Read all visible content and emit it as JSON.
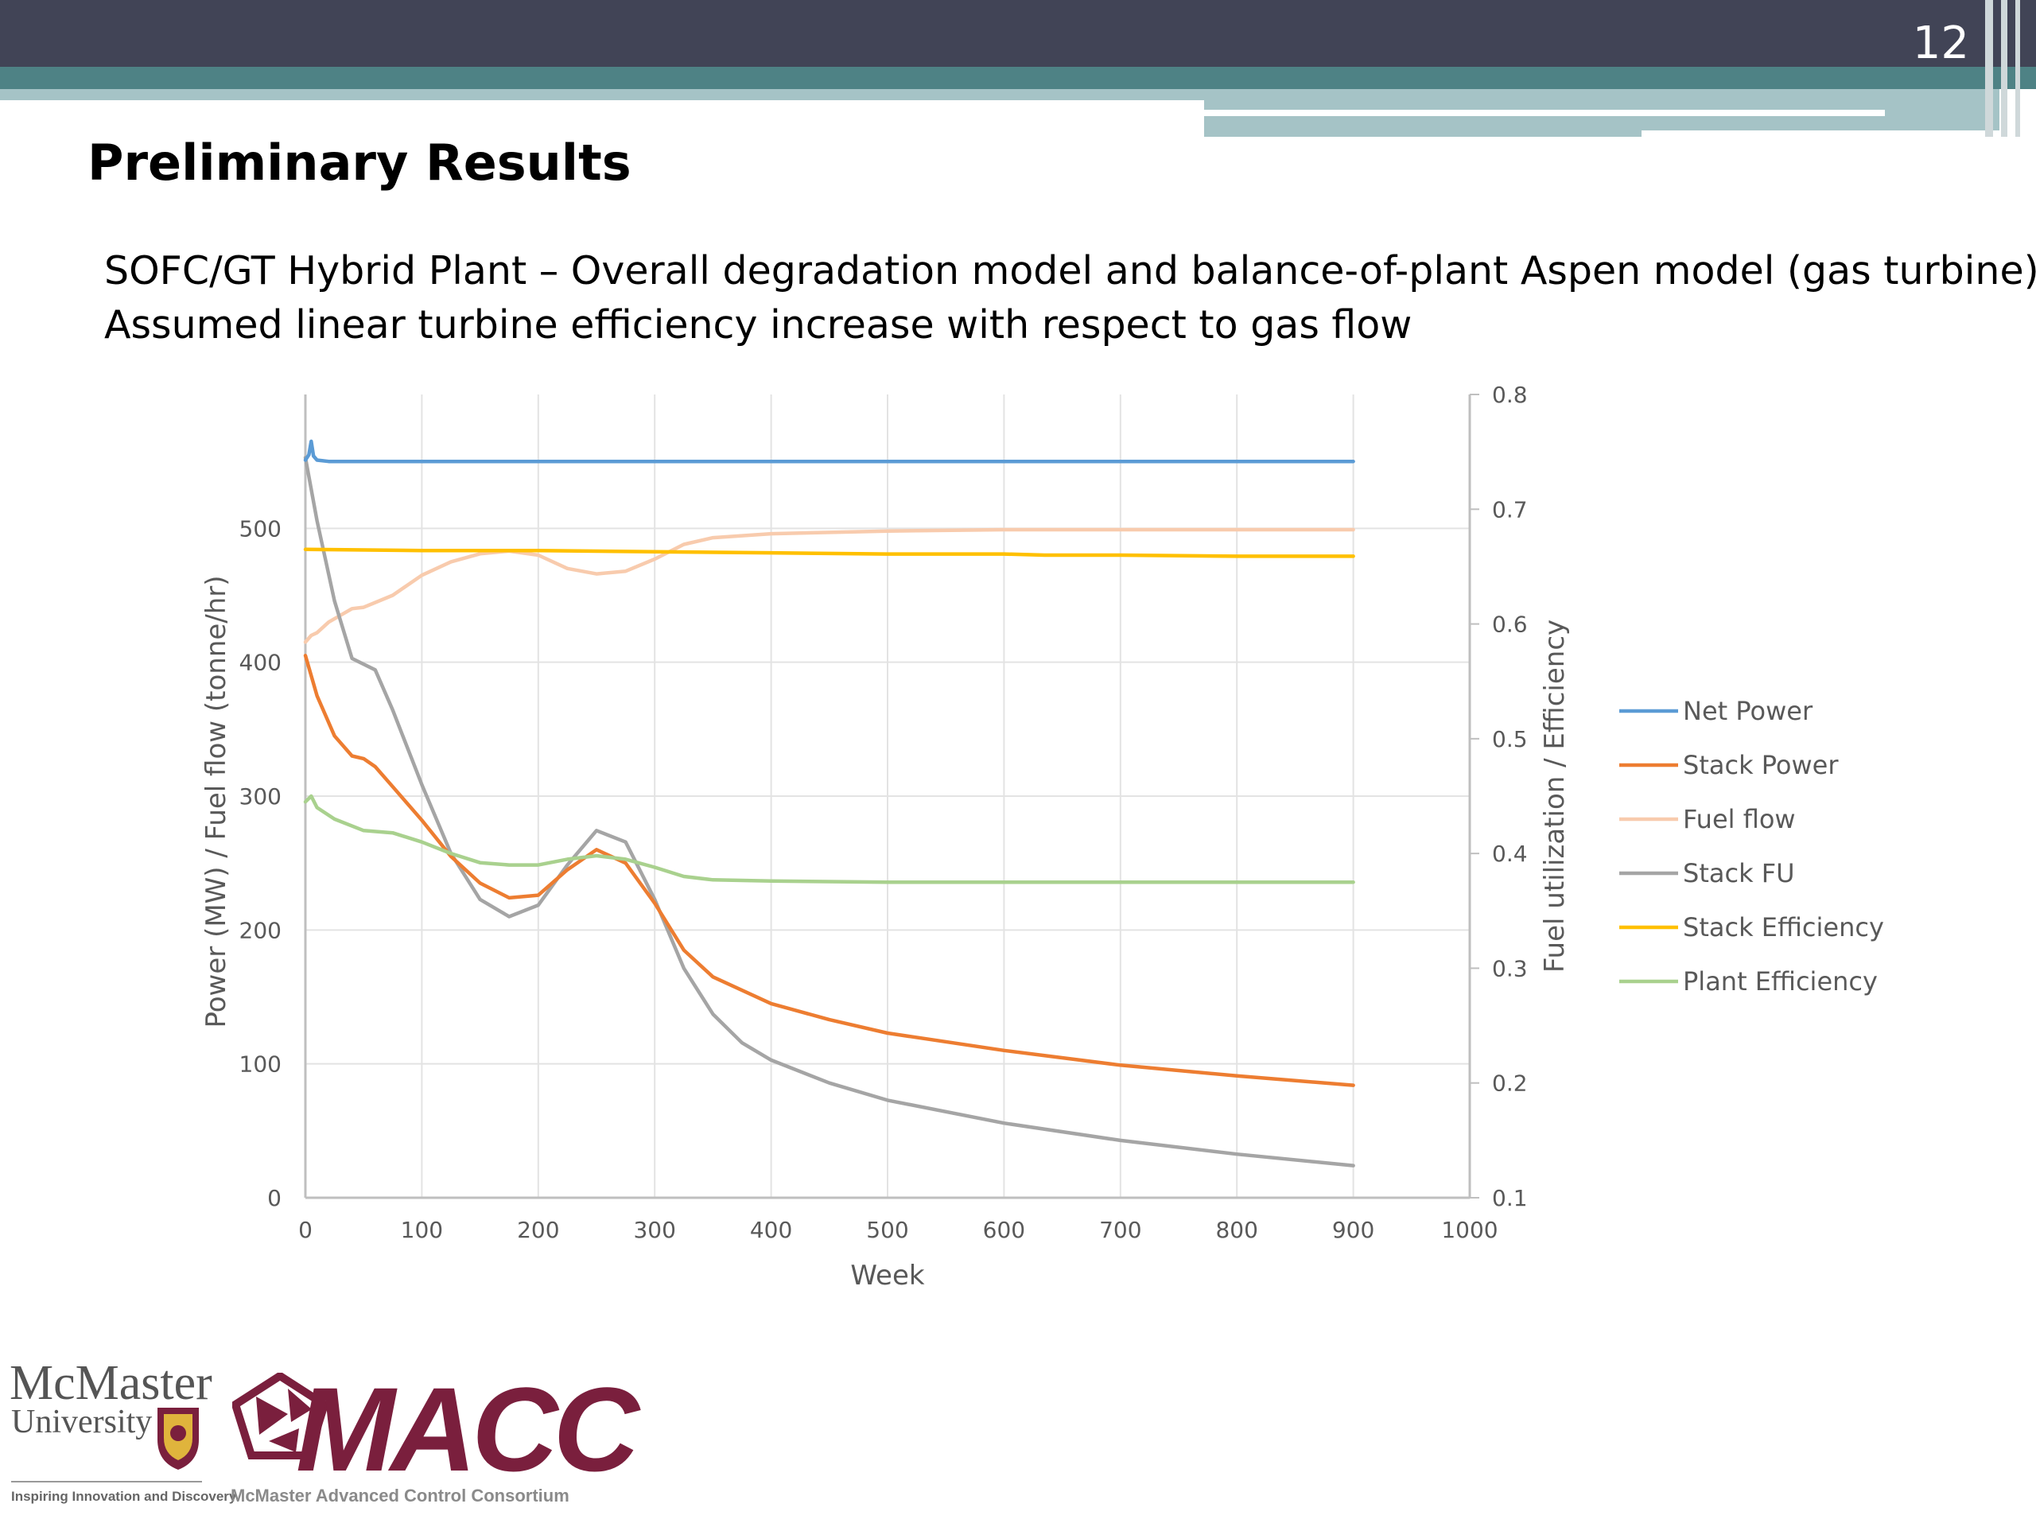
{
  "slide": {
    "number": "12",
    "title": "Preliminary Results",
    "subtitle_line1": "SOFC/GT Hybrid Plant – Overall degradation model and balance-of-plant Aspen model (gas turbine)",
    "subtitle_line2": "Assumed linear turbine efficiency increase with respect to gas flow",
    "header_colors": {
      "dark": "#414456",
      "teal": "#4e8285",
      "light": "#a5c3c6"
    }
  },
  "logos": {
    "mcmaster_name": "McMaster",
    "mcmaster_univ": "University",
    "mcmaster_tagline": "Inspiring Innovation and Discovery",
    "macc_text": "MACC",
    "macc_tagline": "McMaster Advanced Control Consortium"
  },
  "chart_data": {
    "type": "line",
    "title": "",
    "xlabel": "Week",
    "ylabel": "Power (MW) / Fuel flow (tonne/hr)",
    "y2label": "Fuel utilization / Efficiency",
    "xlim": [
      0,
      1000
    ],
    "ylim": [
      0,
      600
    ],
    "y2lim": [
      0.1,
      0.8
    ],
    "xticks": [
      0,
      100,
      200,
      300,
      400,
      500,
      600,
      700,
      800,
      900,
      1000
    ],
    "yticks": [
      0,
      100,
      200,
      300,
      400,
      500
    ],
    "y2ticks": [
      0.1,
      0.2,
      0.3,
      0.4,
      0.5,
      0.6,
      0.7,
      0.8
    ],
    "grid": true,
    "legend_position": "right",
    "series": [
      {
        "name": "Net Power",
        "axis": "left",
        "color": "#5b9bd5",
        "x": [
          0,
          3,
          5,
          7,
          10,
          20,
          50,
          100,
          200,
          300,
          400,
          500,
          600,
          700,
          800,
          900
        ],
        "y": [
          551,
          555,
          565,
          554,
          551,
          550,
          550,
          550,
          550,
          550,
          550,
          550,
          550,
          550,
          550,
          550
        ]
      },
      {
        "name": "Stack Power",
        "axis": "left",
        "color": "#ed7d31",
        "x": [
          0,
          10,
          25,
          40,
          50,
          60,
          75,
          100,
          125,
          150,
          175,
          200,
          225,
          250,
          275,
          300,
          325,
          350,
          400,
          450,
          500,
          600,
          700,
          800,
          900
        ],
        "y": [
          405,
          375,
          345,
          330,
          328,
          322,
          307,
          282,
          255,
          235,
          224,
          226,
          245,
          260,
          250,
          220,
          185,
          165,
          145,
          133,
          123,
          110,
          99,
          91,
          84
        ]
      },
      {
        "name": "Fuel flow",
        "axis": "left",
        "color": "#f8cbad",
        "x": [
          0,
          5,
          10,
          20,
          40,
          50,
          75,
          100,
          125,
          150,
          175,
          200,
          225,
          250,
          275,
          300,
          325,
          350,
          400,
          500,
          600,
          700,
          800,
          900
        ],
        "y": [
          415,
          420,
          422,
          430,
          440,
          441,
          450,
          465,
          475,
          481,
          483,
          480,
          470,
          466,
          468,
          477,
          488,
          493,
          496,
          498,
          499,
          499,
          499,
          499
        ]
      },
      {
        "name": "Stack FU",
        "axis": "right",
        "color": "#a5a5a5",
        "x": [
          0,
          10,
          25,
          40,
          50,
          60,
          75,
          100,
          125,
          150,
          175,
          200,
          225,
          250,
          275,
          300,
          325,
          350,
          375,
          400,
          450,
          500,
          600,
          700,
          800,
          900
        ],
        "y": [
          0.745,
          0.69,
          0.62,
          0.57,
          0.565,
          0.56,
          0.525,
          0.46,
          0.4,
          0.36,
          0.345,
          0.355,
          0.39,
          0.42,
          0.41,
          0.36,
          0.3,
          0.26,
          0.235,
          0.22,
          0.2,
          0.185,
          0.165,
          0.15,
          0.138,
          0.128
        ]
      },
      {
        "name": "Stack Efficiency",
        "axis": "right",
        "color": "#ffc000",
        "x": [
          0,
          100,
          200,
          300,
          400,
          500,
          600,
          635,
          700,
          800,
          900
        ],
        "y": [
          0.665,
          0.664,
          0.664,
          0.663,
          0.662,
          0.661,
          0.661,
          0.66,
          0.66,
          0.659,
          0.659
        ]
      },
      {
        "name": "Plant Efficiency",
        "axis": "right",
        "color": "#a9d18e",
        "x": [
          0,
          5,
          10,
          25,
          50,
          75,
          100,
          125,
          150,
          175,
          200,
          225,
          250,
          275,
          300,
          325,
          350,
          400,
          500,
          600,
          700,
          800,
          900
        ],
        "y": [
          0.445,
          0.45,
          0.44,
          0.43,
          0.42,
          0.418,
          0.41,
          0.4,
          0.392,
          0.39,
          0.39,
          0.395,
          0.398,
          0.395,
          0.388,
          0.38,
          0.377,
          0.376,
          0.375,
          0.375,
          0.375,
          0.375,
          0.375
        ]
      }
    ]
  }
}
